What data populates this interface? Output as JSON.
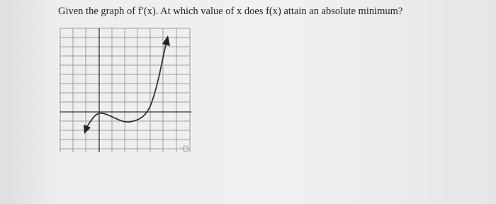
{
  "question": {
    "text": "Given the graph of f′(x). At which value of x does f(x) attain an absolute minimum?"
  }
}
